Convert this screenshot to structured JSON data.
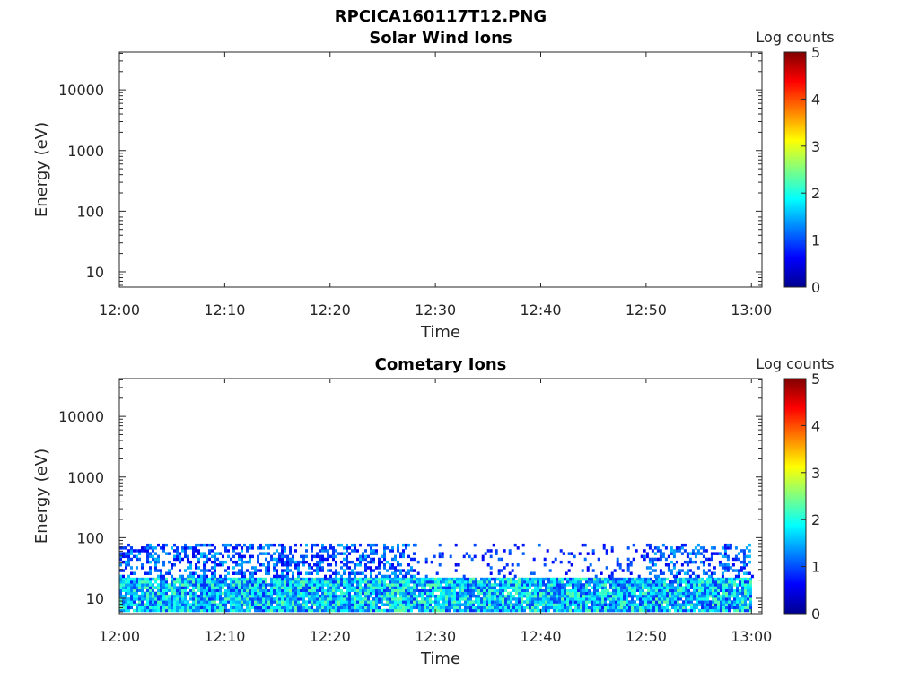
{
  "figure_title": "RPCICA160117T12.PNG",
  "colormap": [
    "#00008f",
    "#0000ff",
    "#0080ff",
    "#00ffff",
    "#80ff80",
    "#ffff00",
    "#ff8000",
    "#ff0000",
    "#800000"
  ],
  "chart_data": [
    {
      "type": "heatmap",
      "title": "Solar Wind Ions",
      "xlabel": "Time",
      "ylabel": "Energy (eV)",
      "y_scale": "log",
      "x_ticks": [
        "12:00",
        "12:10",
        "12:20",
        "12:30",
        "12:40",
        "12:50",
        "13:00"
      ],
      "y_ticks": [
        "10",
        "100",
        "1000",
        "10000"
      ],
      "xlim": [
        "12:00",
        "13:01"
      ],
      "ylim": [
        5.6,
        42000
      ],
      "colorbar": {
        "label": "Log counts",
        "range": [
          0,
          5
        ],
        "ticks": [
          "0",
          "1",
          "2",
          "3",
          "4",
          "5"
        ]
      },
      "bands": []
    },
    {
      "type": "heatmap",
      "title": "Cometary Ions",
      "xlabel": "Time",
      "ylabel": "Energy (eV)",
      "y_scale": "log",
      "x_ticks": [
        "12:00",
        "12:10",
        "12:20",
        "12:30",
        "12:40",
        "12:50",
        "13:00"
      ],
      "y_ticks": [
        "10",
        "100",
        "1000",
        "10000"
      ],
      "xlim": [
        "12:00",
        "13:01"
      ],
      "ylim": [
        5.6,
        42000
      ],
      "colorbar": {
        "label": "Log counts",
        "range": [
          0,
          5
        ],
        "ticks": [
          "0",
          "1",
          "2",
          "3",
          "4",
          "5"
        ]
      },
      "bands": [
        {
          "time_range": [
            "12:00",
            "13:00"
          ],
          "energy_range": [
            6,
            22
          ],
          "log_counts_range": [
            0.8,
            2.4
          ],
          "coverage": 0.95
        },
        {
          "time_range": [
            "12:00",
            "12:28"
          ],
          "energy_range": [
            22,
            80
          ],
          "log_counts_range": [
            0.5,
            1.6
          ],
          "coverage": 0.45
        },
        {
          "time_range": [
            "12:28",
            "12:50"
          ],
          "energy_range": [
            22,
            80
          ],
          "log_counts_range": [
            0.5,
            1.2
          ],
          "coverage": 0.12
        },
        {
          "time_range": [
            "12:50",
            "13:00"
          ],
          "energy_range": [
            22,
            80
          ],
          "log_counts_range": [
            0.5,
            1.6
          ],
          "coverage": 0.4
        }
      ]
    }
  ]
}
